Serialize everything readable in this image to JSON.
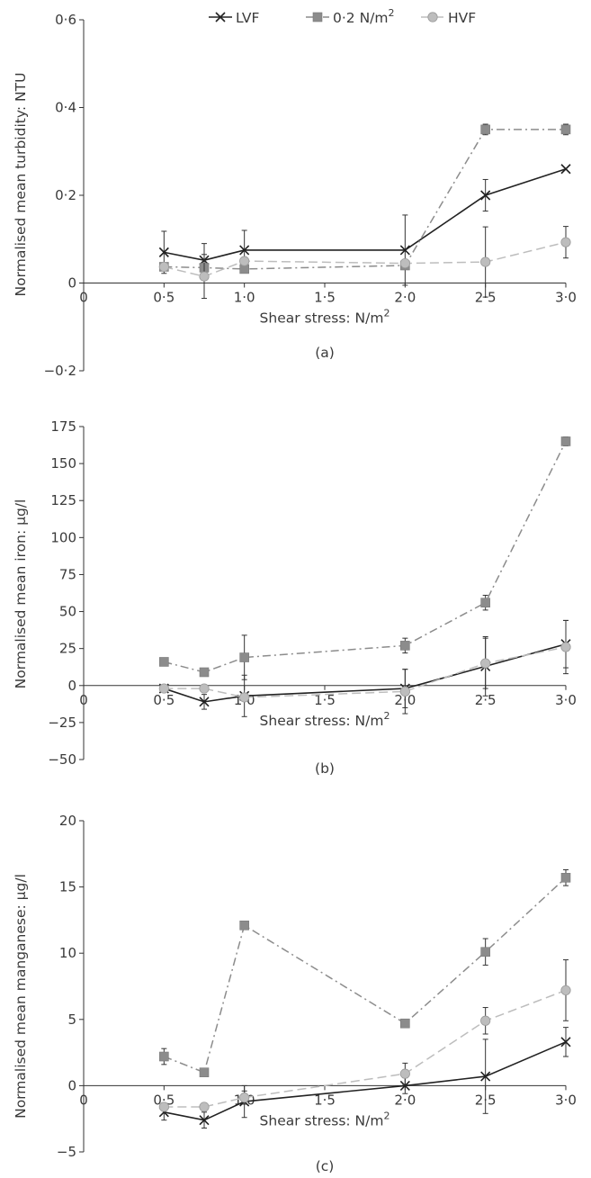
{
  "chart_data": [
    {
      "type": "line",
      "panel_label": "(a)",
      "xlabel": "Shear stress: N/m",
      "xlabel_sup": "2",
      "ylabel": "Normalised mean turbidity: NTU",
      "xlim": [
        0,
        3.0
      ],
      "ylim": [
        -0.2,
        0.6
      ],
      "xticks": [
        0,
        0.5,
        1.0,
        1.5,
        2.0,
        2.5,
        3.0
      ],
      "xtick_labels": [
        "0",
        "0·5",
        "1·0",
        "1·5",
        "2·0",
        "2·5",
        "3·0"
      ],
      "yticks": [
        -0.2,
        0,
        0.2,
        0.4,
        0.6
      ],
      "ytick_labels": [
        "−0·2",
        "0",
        "0·2",
        "0·4",
        "0·6"
      ],
      "legend": {
        "placement": "top",
        "entries": [
          {
            "label": "LVF",
            "sup": ""
          },
          {
            "label": "0·2 N/m",
            "sup": "2"
          },
          {
            "label": "HVF",
            "sup": ""
          }
        ]
      },
      "x": [
        0.5,
        0.75,
        1.0,
        2.0,
        2.5,
        3.0
      ],
      "series": [
        {
          "name": "LVF",
          "color": "#222222",
          "marker": "x",
          "dash": "solid",
          "values": [
            0.07,
            0.052,
            0.075,
            0.075,
            0.2,
            0.26
          ],
          "errors": [
            0.048,
            0.038,
            0.045,
            0.08,
            0.036,
            0.0
          ]
        },
        {
          "name": "0·2 N/m²",
          "color": "#8c8c8c",
          "marker": "square",
          "dash": "dashdot",
          "values": [
            0.037,
            0.035,
            0.032,
            0.04,
            0.35,
            0.35
          ],
          "errors": [
            0.0,
            0.0,
            0.0,
            0.0,
            0.012,
            0.012
          ]
        },
        {
          "name": "HVF",
          "color": "#bdbdbd",
          "marker": "circle",
          "dash": "dash",
          "values": [
            0.037,
            0.015,
            0.05,
            0.045,
            0.048,
            0.093
          ],
          "errors": [
            0.0,
            0.05,
            0.0,
            0.0,
            0.08,
            0.036
          ]
        }
      ]
    },
    {
      "type": "line",
      "panel_label": "(b)",
      "xlabel": "Shear stress: N/m",
      "xlabel_sup": "2",
      "ylabel": "Normalised mean iron: µg/l",
      "xlim": [
        0,
        3.0
      ],
      "ylim": [
        -50,
        175
      ],
      "xticks": [
        0,
        0.5,
        1.0,
        1.5,
        2.0,
        2.5,
        3.0
      ],
      "xtick_labels": [
        "0",
        "0·5",
        "1·0",
        "1·5",
        "2·0",
        "2·5",
        "3·0"
      ],
      "yticks": [
        -50,
        -25,
        0,
        25,
        50,
        75,
        100,
        125,
        150,
        175
      ],
      "ytick_labels": [
        "−50",
        "−25",
        "0",
        "25",
        "50",
        "75",
        "100",
        "125",
        "150",
        "175"
      ],
      "x": [
        0.5,
        0.75,
        1.0,
        2.0,
        2.5,
        3.0
      ],
      "series": [
        {
          "name": "LVF",
          "color": "#222222",
          "marker": "x",
          "dash": "solid",
          "values": [
            -2,
            -11,
            -7,
            -2,
            13,
            28
          ],
          "errors": [
            0,
            5,
            14,
            13,
            20,
            16
          ]
        },
        {
          "name": "0·2 N/m²",
          "color": "#8c8c8c",
          "marker": "square",
          "dash": "dashdot",
          "values": [
            16,
            9,
            19,
            27,
            56,
            165
          ],
          "errors": [
            0,
            0,
            15,
            5,
            5,
            3
          ]
        },
        {
          "name": "HVF",
          "color": "#bdbdbd",
          "marker": "circle",
          "dash": "dash",
          "values": [
            -2,
            -2,
            -8,
            -4,
            15,
            26
          ],
          "errors": [
            0,
            0,
            0,
            15,
            17,
            18
          ]
        }
      ]
    },
    {
      "type": "line",
      "panel_label": "(c)",
      "xlabel": "Shear stress: N/m",
      "xlabel_sup": "2",
      "ylabel": "Normalised mean manganese: µg/l",
      "xlim": [
        0,
        3.0
      ],
      "ylim": [
        -5,
        20
      ],
      "xticks": [
        0,
        0.5,
        1.0,
        1.5,
        2.0,
        2.5,
        3.0
      ],
      "xtick_labels": [
        "0",
        "0·5",
        "1·0",
        "1·5",
        "2·0",
        "2·5",
        "3·0"
      ],
      "yticks": [
        -5,
        0,
        5,
        10,
        15,
        20
      ],
      "ytick_labels": [
        "−5",
        "0",
        "5",
        "10",
        "15",
        "20"
      ],
      "x": [
        0.5,
        0.75,
        1.0,
        2.0,
        2.5,
        3.0
      ],
      "series": [
        {
          "name": "LVF",
          "color": "#222222",
          "marker": "x",
          "dash": "solid",
          "values": [
            -2.0,
            -2.6,
            -1.2,
            0.0,
            0.7,
            3.3
          ],
          "errors": [
            0.6,
            0.6,
            1.2,
            0.6,
            2.8,
            1.1
          ]
        },
        {
          "name": "0·2 N/m²",
          "color": "#8c8c8c",
          "marker": "square",
          "dash": "dashdot",
          "values": [
            2.2,
            1.0,
            12.1,
            4.7,
            10.1,
            15.7
          ],
          "errors": [
            0.6,
            0.0,
            0.0,
            0.0,
            1.0,
            0.6
          ]
        },
        {
          "name": "HVF",
          "color": "#bdbdbd",
          "marker": "circle",
          "dash": "dash",
          "values": [
            -1.6,
            -1.6,
            -0.9,
            0.9,
            4.9,
            7.2
          ],
          "errors": [
            0.0,
            0.0,
            0.5,
            0.8,
            1.0,
            2.3
          ]
        }
      ]
    }
  ]
}
